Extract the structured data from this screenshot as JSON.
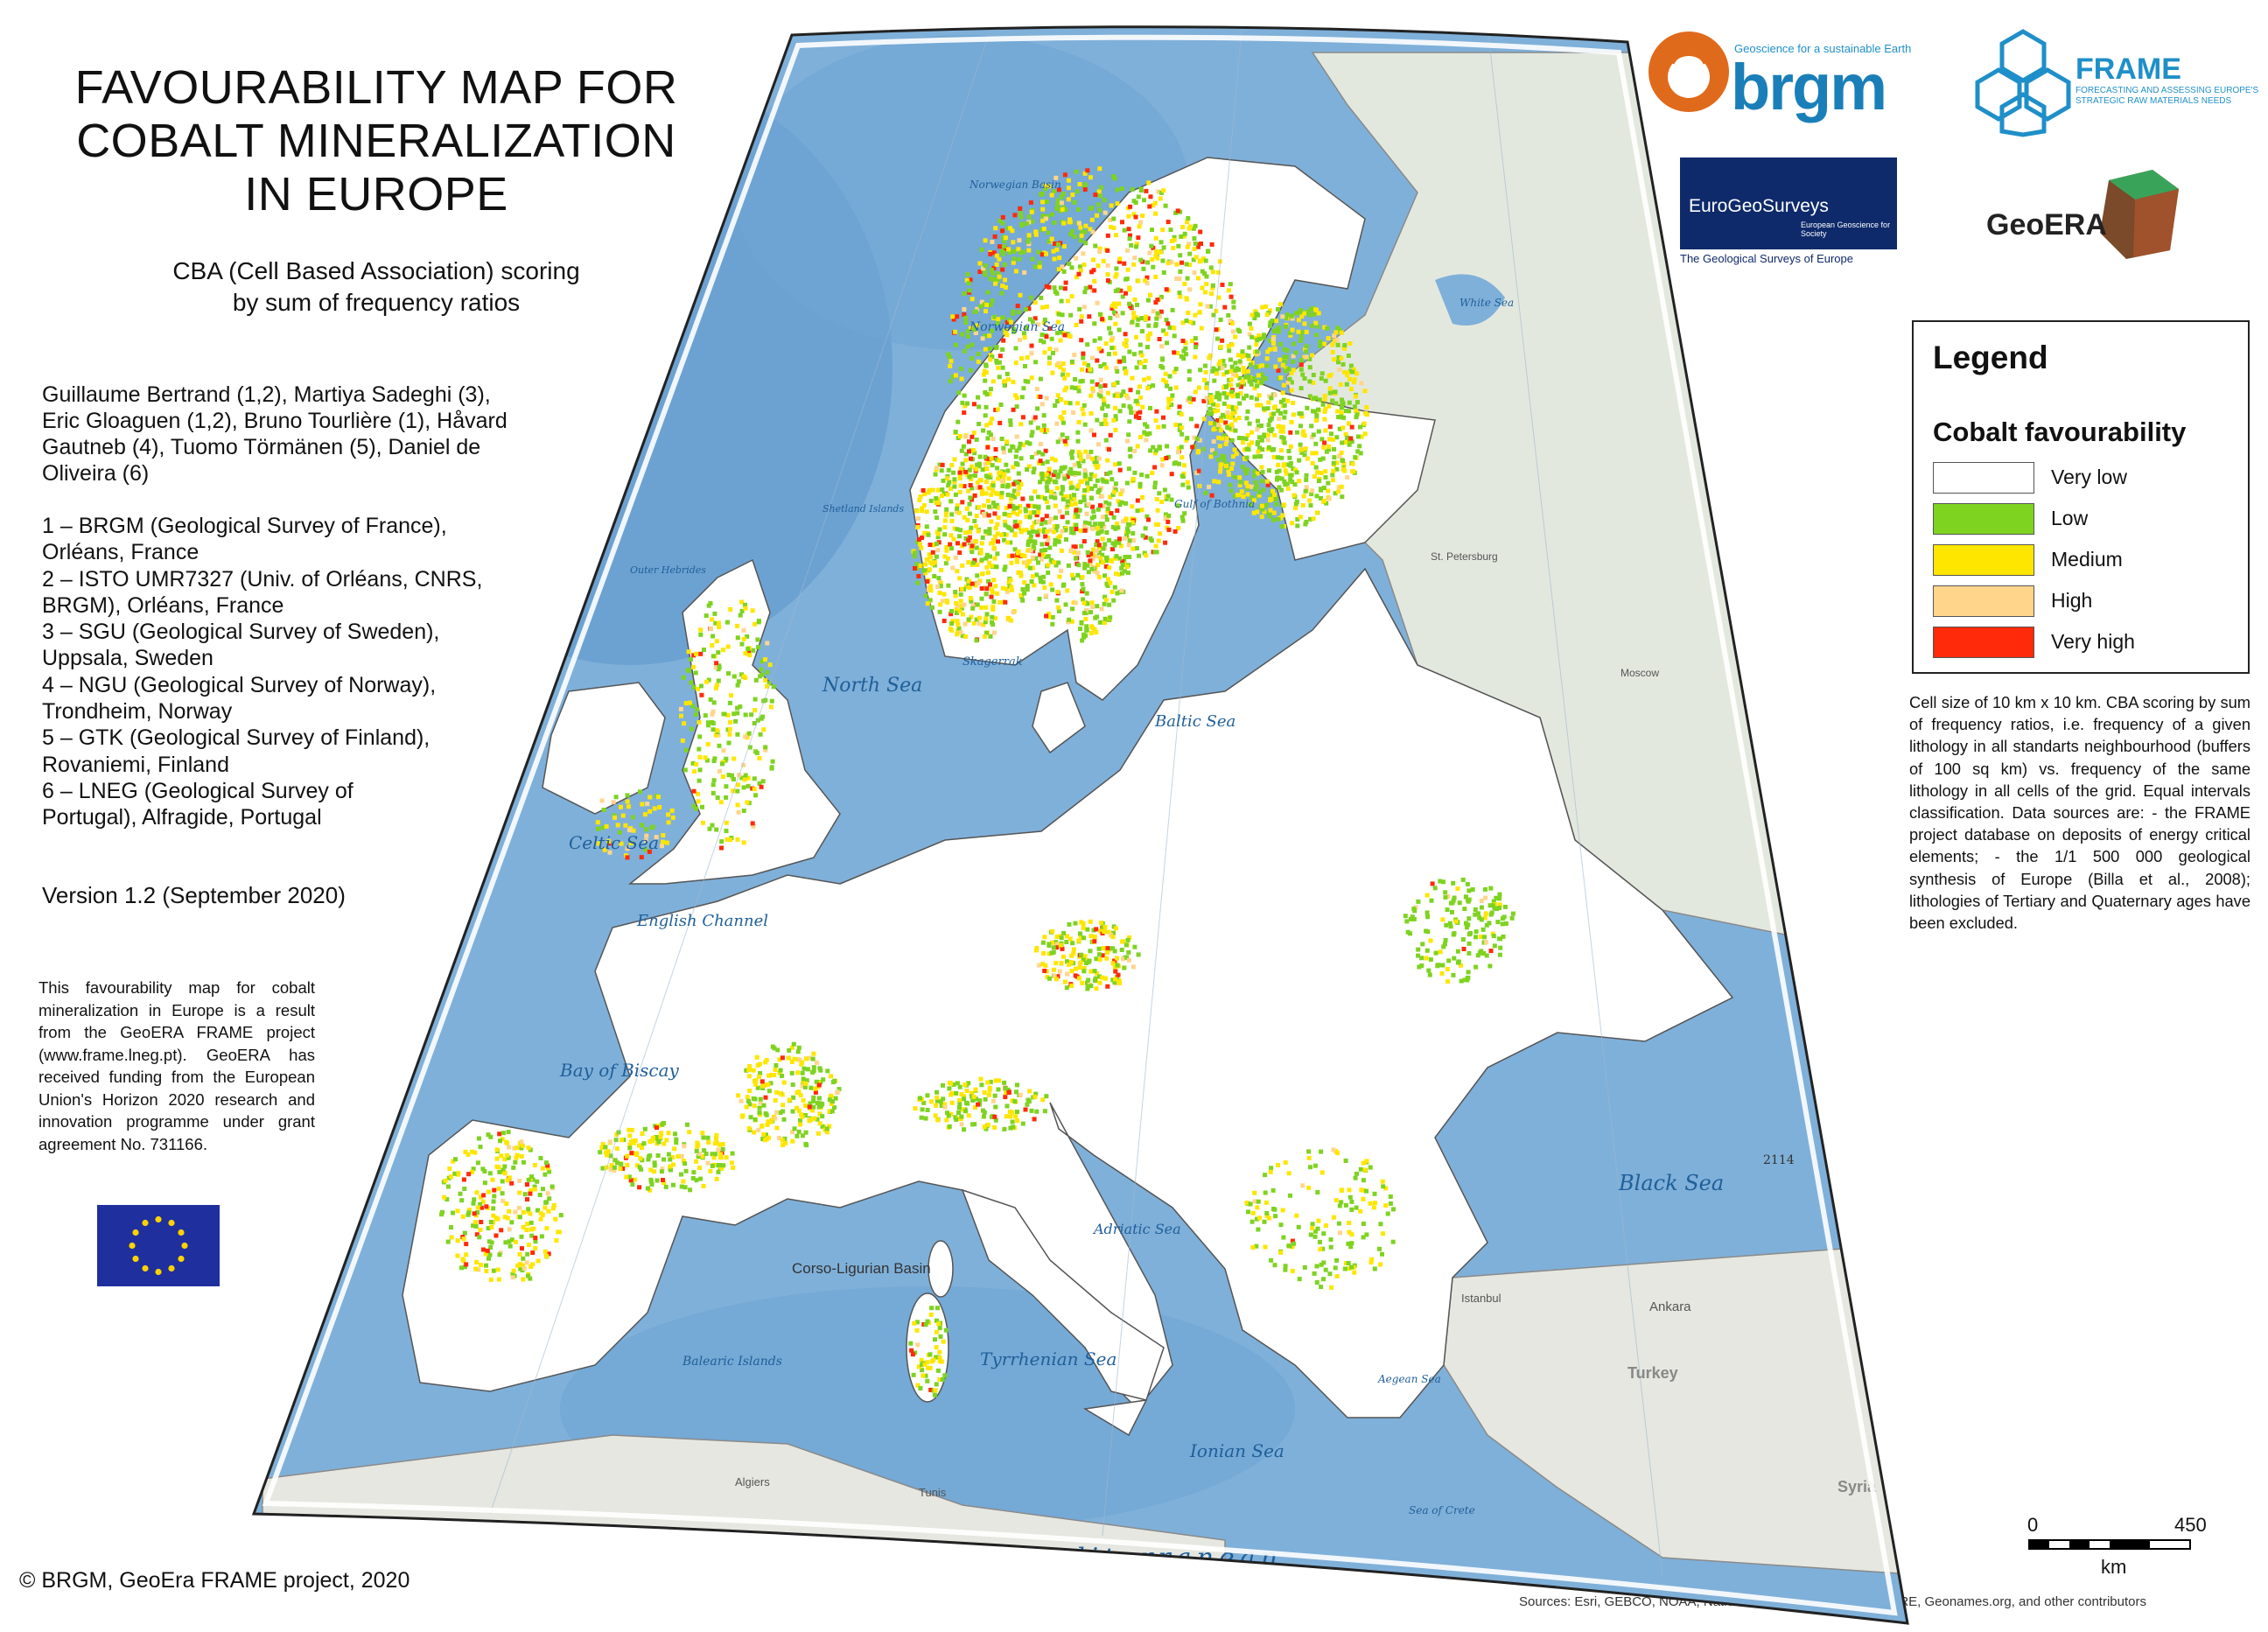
{
  "title_lines": [
    "FAVOURABILITY MAP FOR",
    "COBALT MINERALIZATION",
    "IN EUROPE"
  ],
  "subtitle_lines": [
    "CBA (Cell Based Association) scoring",
    "by sum of frequency ratios"
  ],
  "authors": "Guillaume Bertrand (1,2), Martiya Sadeghi (3), Eric Gloaguen (1,2), Bruno Tourlière (1), Håvard Gautneb (4), Tuomo Törmänen (5), Daniel de Oliveira (6)",
  "affiliations": [
    "1 – BRGM (Geological Survey of France),",
    "Orléans, France",
    "2 – ISTO UMR7327 (Univ. of Orléans, CNRS,",
    "BRGM), Orléans, France",
    "3 – SGU (Geological Survey of Sweden),",
    "Uppsala, Sweden",
    "4 – NGU (Geological Survey of Norway),",
    "Trondheim, Norway",
    "5 – GTK (Geological Survey of Finland),",
    "Rovaniemi, Finland",
    "6 – LNEG (Geological Survey of",
    "Portugal), Alfragide, Portugal"
  ],
  "version": "Version 1.2 (September 2020)",
  "funding_note": "This favourability map for cobalt mineralization in Europe is a result from the GeoERA FRAME project (www.frame.lneg.pt). GeoERA has received funding from the European Union's Horizon 2020 research and innovation programme under grant agreement No. 731166.",
  "copyright": "© BRGM, GeoEra FRAME project, 2020",
  "sources": "Sources: Esri, GEBCO, NOAA, National Geographic, Garmin, HERE, Geonames.org, and other contributors",
  "logos": {
    "brgm": {
      "tagline": "Geoscience for a sustainable Earth",
      "name": "brgm",
      "icon": "brgm-logo-icon",
      "color": "#e06a1b"
    },
    "frame": {
      "name": "FRAME",
      "tagline": "FORECASTING AND ASSESSING EUROPE'S STRATEGIC RAW MATERIALS NEEDS",
      "icon": "frame-hexagon-icon",
      "color": "#1f8fc9"
    },
    "eurogeosurveys": {
      "name": "EuroGeoSurveys",
      "tagline": "European Geoscience for Society",
      "caption": "The Geological Surveys of Europe"
    },
    "geoera": {
      "name": "GeoERA",
      "icon": "geoera-cube-icon"
    }
  },
  "legend": {
    "title": "Legend",
    "subtitle": "Cobalt favourability",
    "classes": [
      {
        "label": "Very low",
        "color": "#ffffff"
      },
      {
        "label": "Low",
        "color": "#7ed321"
      },
      {
        "label": "Medium",
        "color": "#ffe600"
      },
      {
        "label": "High",
        "color": "#ffd58c"
      },
      {
        "label": "Very high",
        "color": "#ff2a0a"
      }
    ],
    "description": "Cell size of 10 km x 10 km. CBA scoring by sum of frequency ratios, i.e. frequency of a given lithology in all standarts neighbourhood (buffers of 100 sq km) vs. frequency of the same lithology in all cells of the grid. Equal intervals classification. Data sources are: - the FRAME project database on deposits of energy critical elements; - the 1/1 500 000 geological synthesis of Europe (Billa et al., 2008); lithologies of Tertiary and Quaternary ages have been excluded."
  },
  "scalebar": {
    "min": "0",
    "max": "450",
    "unit": "km"
  },
  "map_labels": {
    "norwegian_basin": "Norwegian Basin",
    "norwegian_sea": "Norwegian Sea",
    "white_sea": "White Sea",
    "gulf_of_bothnia": "Gulf of Bothnia",
    "st_petersburg": "St. Petersburg",
    "moscow": "Moscow",
    "shetland": "Shetland Islands",
    "outer_hebrides": "Outer Hebrides",
    "north_sea": "North Sea",
    "skagerrak": "Skagerrak",
    "baltic_sea": "Baltic Sea",
    "celtic_sea": "Celtic Sea",
    "english_channel": "English Channel",
    "bay_of_biscay": "Bay of Biscay",
    "black_sea": "Black Sea",
    "depth": "2114",
    "corso_ligurian": "Corso-Ligurian Basin",
    "balearic": "Balearic Islands",
    "tyrrhenian": "Tyrrhenian Sea",
    "adriatic": "Adriatic Sea",
    "ionian": "Ionian Sea",
    "aegean": "Aegean Sea",
    "sea_of_crete": "Sea of Crete",
    "mediterranean": "Mediterranean",
    "mediterranean_sea": "Sea",
    "istanbul": "Istanbul",
    "ankara": "Ankara",
    "turkey": "Turkey",
    "syria": "Syria",
    "algiers": "Algiers",
    "tunis": "Tunis"
  }
}
